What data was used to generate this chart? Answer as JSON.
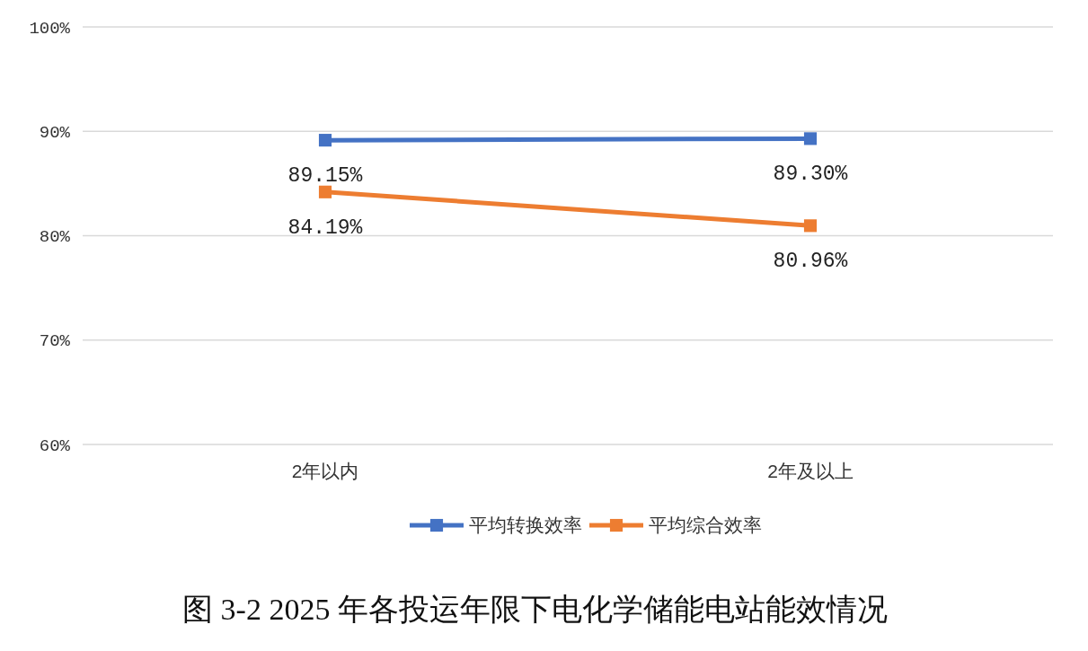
{
  "chart_data": {
    "type": "line",
    "title": "图 3-2 2025 年各投运年限下电化学储能电站能效情况",
    "categories": [
      "2年以内",
      "2年及以上"
    ],
    "series": [
      {
        "name": "平均转换效率",
        "color": "#4472c4",
        "values": [
          89.15,
          89.3
        ],
        "value_labels": [
          "89.15%",
          "89.30%"
        ]
      },
      {
        "name": "平均综合效率",
        "color": "#ed7d31",
        "values": [
          84.19,
          80.96
        ],
        "value_labels": [
          "84.19%",
          "80.96%"
        ]
      }
    ],
    "ylim": [
      60,
      100
    ],
    "yticks": [
      {
        "value": 60,
        "label": "60%"
      },
      {
        "value": 70,
        "label": "70%"
      },
      {
        "value": 80,
        "label": "80%"
      },
      {
        "value": 90,
        "label": "90%"
      },
      {
        "value": 100,
        "label": "100%"
      }
    ],
    "grid": "y",
    "legend": "bottom",
    "marker": "square",
    "line_style": "solid"
  }
}
